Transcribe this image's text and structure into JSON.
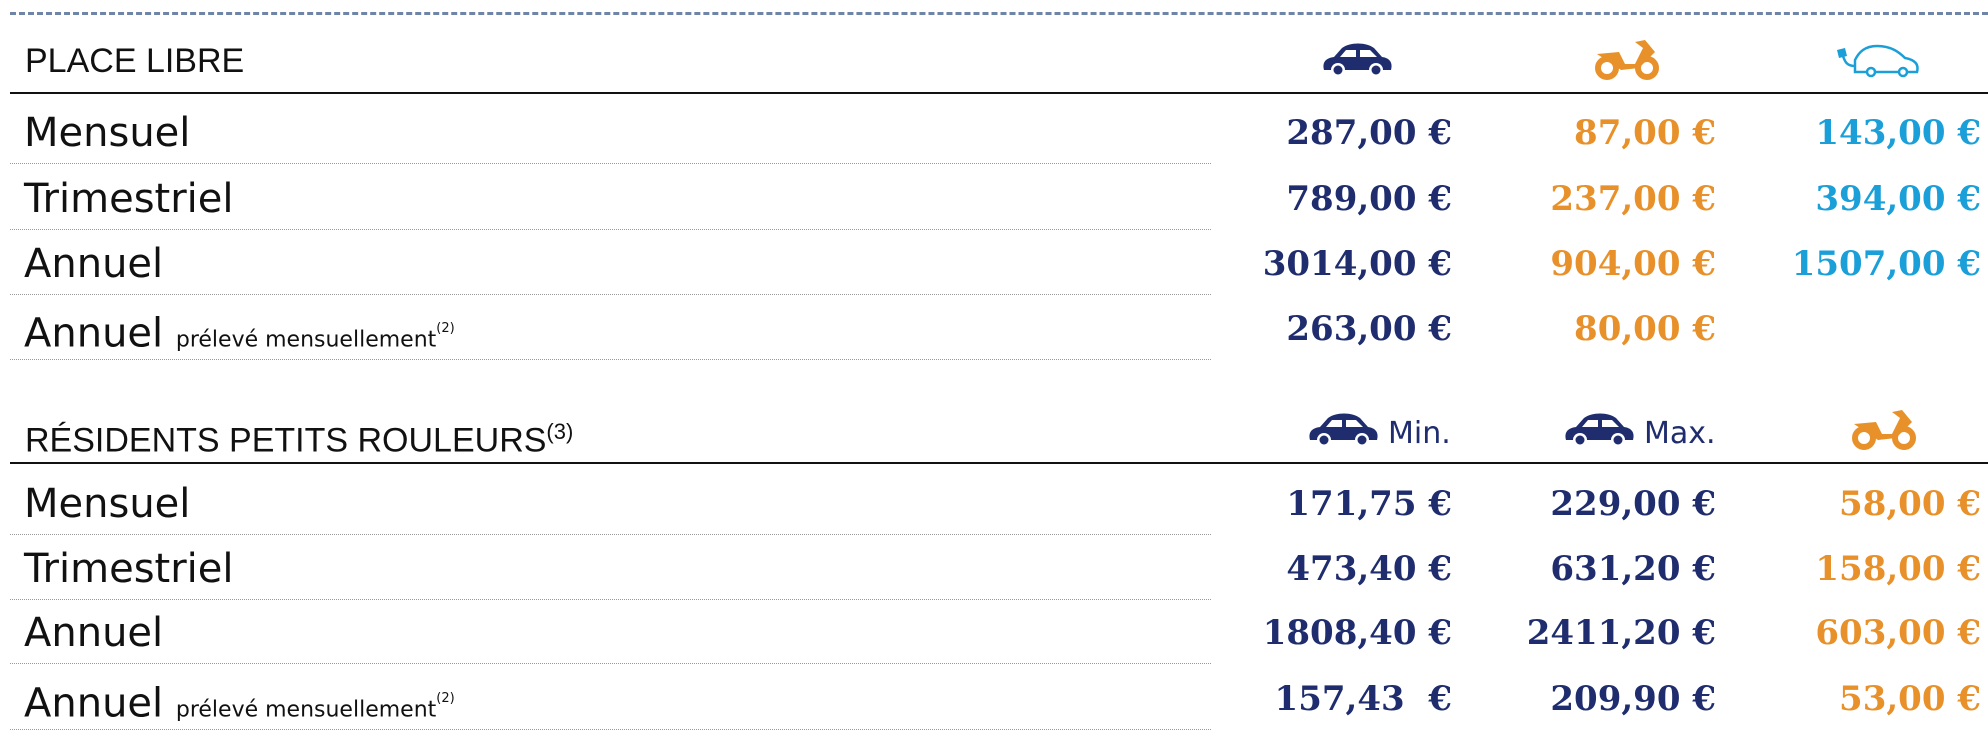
{
  "sections": [
    {
      "title": "PLACE LIBRE",
      "title_sup": null,
      "columns": [
        null,
        null,
        null
      ],
      "colors": [
        "#1f2d6e",
        "#e8912a",
        "#1a9fd9"
      ],
      "rows": [
        {
          "label": "Mensuel",
          "note": null,
          "note_sup": null,
          "values": [
            "287,00 €",
            "87,00 €",
            "143,00 €"
          ]
        },
        {
          "label": "Trimestriel",
          "note": null,
          "note_sup": null,
          "values": [
            "789,00 €",
            "237,00 €",
            "394,00 €"
          ]
        },
        {
          "label": "Annuel",
          "note": null,
          "note_sup": null,
          "values": [
            "3014,00 €",
            "904,00 €",
            "1507,00 €"
          ]
        },
        {
          "label": "Annuel",
          "note": "prélevé mensuellement",
          "note_sup": "(2)",
          "values": [
            "263,00 €",
            "80,00 €",
            null
          ]
        }
      ]
    },
    {
      "title": "RÉSIDENTS PETITS ROULEURS",
      "title_sup": "(3)",
      "columns": [
        "Min.",
        "Max.",
        null
      ],
      "colors": [
        "#1f2d6e",
        "#1f2d6e",
        "#e8912a"
      ],
      "rows": [
        {
          "label": "Mensuel",
          "note": null,
          "note_sup": null,
          "values": [
            "171,75 €",
            "229,00 €",
            "58,00 €"
          ]
        },
        {
          "label": "Trimestriel",
          "note": null,
          "note_sup": null,
          "values": [
            "473,40 €",
            "631,20 €",
            "158,00 €"
          ]
        },
        {
          "label": "Annuel",
          "note": null,
          "note_sup": null,
          "values": [
            "1808,40 €",
            "2411,20 €",
            "603,00 €"
          ]
        },
        {
          "label": "Annuel",
          "note": "prélevé mensuellement",
          "note_sup": "(2)",
          "values": [
            "157,43  €",
            "209,90 €",
            "53,00 €"
          ]
        }
      ]
    }
  ]
}
